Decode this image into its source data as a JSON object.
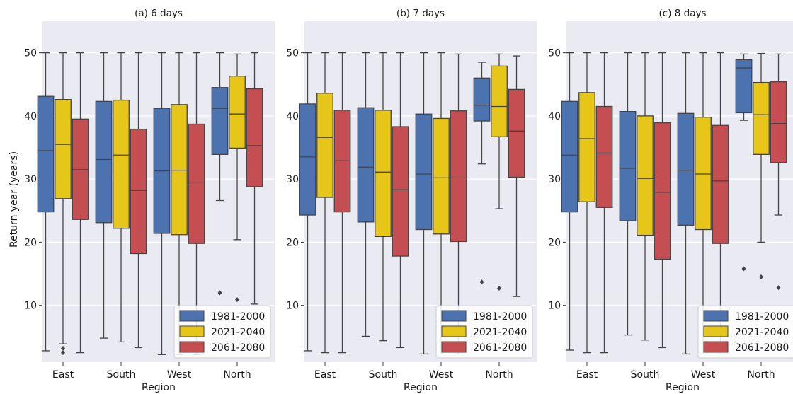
{
  "ylabel": "Return year (years)",
  "xlabel": "Region",
  "legend_entries": [
    "1981-2000",
    "2021-2040",
    "2061-2080"
  ],
  "colors": {
    "1981-2000": "#4c72b0",
    "2021-2040": "#e6c619",
    "2061-2080": "#c44e52",
    "background": "#eaeaf2",
    "whisker": "#444444"
  },
  "chart_data": [
    {
      "type": "box",
      "title": "(a) 6 days",
      "categories": [
        "East",
        "South",
        "West",
        "North"
      ],
      "ylim": [
        1,
        55
      ],
      "yticks": [
        10,
        20,
        30,
        40,
        50
      ],
      "grid": true,
      "legend_position": "lower-right",
      "series": [
        {
          "name": "1981-2000",
          "boxes": [
            {
              "min": 2.8,
              "q1": 24.8,
              "median": 34.5,
              "q3": 43.1,
              "max": 50,
              "outliers": []
            },
            {
              "min": 4.8,
              "q1": 23.1,
              "median": 33.1,
              "q3": 42.3,
              "max": 50,
              "outliers": []
            },
            {
              "min": 2.2,
              "q1": 21.4,
              "median": 31.3,
              "q3": 41.2,
              "max": 50,
              "outliers": []
            },
            {
              "min": 26.6,
              "q1": 33.9,
              "median": 41.2,
              "q3": 44.5,
              "max": 50,
              "outliers": [
                12.0
              ]
            }
          ]
        },
        {
          "name": "2021-2040",
          "boxes": [
            {
              "min": 3.9,
              "q1": 26.9,
              "median": 35.5,
              "q3": 42.6,
              "max": 50,
              "outliers": [
                3.2,
                2.5
              ]
            },
            {
              "min": 4.2,
              "q1": 22.2,
              "median": 33.8,
              "q3": 42.5,
              "max": 50,
              "outliers": []
            },
            {
              "min": 2.2,
              "q1": 21.2,
              "median": 31.4,
              "q3": 41.8,
              "max": 50,
              "outliers": []
            },
            {
              "min": 20.4,
              "q1": 34.9,
              "median": 40.3,
              "q3": 46.3,
              "max": 49.8,
              "outliers": [
                10.9
              ]
            }
          ]
        },
        {
          "name": "2061-2080",
          "boxes": [
            {
              "min": 2.5,
              "q1": 23.6,
              "median": 31.5,
              "q3": 39.5,
              "max": 50,
              "outliers": []
            },
            {
              "min": 3.3,
              "q1": 18.2,
              "median": 28.2,
              "q3": 37.9,
              "max": 50,
              "outliers": []
            },
            {
              "min": 2.2,
              "q1": 19.8,
              "median": 29.5,
              "q3": 38.7,
              "max": 50,
              "outliers": []
            },
            {
              "min": 10.2,
              "q1": 28.8,
              "median": 35.3,
              "q3": 44.3,
              "max": 50,
              "outliers": []
            }
          ]
        }
      ]
    },
    {
      "type": "box",
      "title": "(b) 7 days",
      "categories": [
        "East",
        "South",
        "West",
        "North"
      ],
      "ylim": [
        1,
        55
      ],
      "yticks": [
        10,
        20,
        30,
        40,
        50
      ],
      "grid": true,
      "legend_position": "lower-right",
      "series": [
        {
          "name": "1981-2000",
          "boxes": [
            {
              "min": 2.8,
              "q1": 24.3,
              "median": 33.5,
              "q3": 41.9,
              "max": 50,
              "outliers": []
            },
            {
              "min": 5.1,
              "q1": 23.2,
              "median": 31.9,
              "q3": 41.3,
              "max": 50,
              "outliers": []
            },
            {
              "min": 2.3,
              "q1": 22.0,
              "median": 30.8,
              "q3": 40.3,
              "max": 50,
              "outliers": []
            },
            {
              "min": 32.4,
              "q1": 39.2,
              "median": 41.7,
              "q3": 46.0,
              "max": 48.5,
              "outliers": [
                13.7
              ]
            }
          ]
        },
        {
          "name": "2021-2040",
          "boxes": [
            {
              "min": 2.5,
              "q1": 27.1,
              "median": 36.6,
              "q3": 43.6,
              "max": 50,
              "outliers": []
            },
            {
              "min": 4.4,
              "q1": 20.9,
              "median": 31.1,
              "q3": 40.9,
              "max": 50,
              "outliers": []
            },
            {
              "min": 2.3,
              "q1": 21.3,
              "median": 30.2,
              "q3": 39.6,
              "max": 50,
              "outliers": []
            },
            {
              "min": 25.3,
              "q1": 36.7,
              "median": 41.5,
              "q3": 47.9,
              "max": 49.8,
              "outliers": [
                12.7
              ]
            }
          ]
        },
        {
          "name": "2061-2080",
          "boxes": [
            {
              "min": 2.5,
              "q1": 24.8,
              "median": 32.9,
              "q3": 40.9,
              "max": 50,
              "outliers": []
            },
            {
              "min": 3.3,
              "q1": 17.8,
              "median": 28.3,
              "q3": 38.3,
              "max": 50,
              "outliers": []
            },
            {
              "min": 2.3,
              "q1": 20.1,
              "median": 30.2,
              "q3": 40.8,
              "max": 49.8,
              "outliers": []
            },
            {
              "min": 11.4,
              "q1": 30.3,
              "median": 37.6,
              "q3": 44.2,
              "max": 49.5,
              "outliers": []
            }
          ]
        }
      ]
    },
    {
      "type": "box",
      "title": "(c) 8 days",
      "categories": [
        "East",
        "South",
        "West",
        "North"
      ],
      "ylim": [
        1,
        55
      ],
      "yticks": [
        10,
        20,
        30,
        40,
        50
      ],
      "grid": true,
      "legend_position": "lower-right",
      "series": [
        {
          "name": "1981-2000",
          "boxes": [
            {
              "min": 2.9,
              "q1": 24.8,
              "median": 33.8,
              "q3": 42.3,
              "max": 50,
              "outliers": []
            },
            {
              "min": 5.3,
              "q1": 23.4,
              "median": 31.7,
              "q3": 40.7,
              "max": 50,
              "outliers": []
            },
            {
              "min": 2.3,
              "q1": 22.7,
              "median": 31.4,
              "q3": 40.4,
              "max": 50,
              "outliers": []
            },
            {
              "min": 39.3,
              "q1": 40.5,
              "median": 47.6,
              "q3": 48.9,
              "max": 49.8,
              "outliers": [
                15.8
              ]
            }
          ]
        },
        {
          "name": "2021-2040",
          "boxes": [
            {
              "min": 2.5,
              "q1": 26.4,
              "median": 36.4,
              "q3": 43.7,
              "max": 50,
              "outliers": []
            },
            {
              "min": 4.5,
              "q1": 21.1,
              "median": 30.1,
              "q3": 40.0,
              "max": 50,
              "outliers": []
            },
            {
              "min": 2.3,
              "q1": 22.0,
              "median": 30.8,
              "q3": 39.8,
              "max": 50,
              "outliers": []
            },
            {
              "min": 20.0,
              "q1": 33.9,
              "median": 40.2,
              "q3": 45.3,
              "max": 49.9,
              "outliers": [
                14.5
              ]
            }
          ]
        },
        {
          "name": "2061-2080",
          "boxes": [
            {
              "min": 2.5,
              "q1": 25.5,
              "median": 34.1,
              "q3": 41.5,
              "max": 50,
              "outliers": []
            },
            {
              "min": 3.3,
              "q1": 17.3,
              "median": 27.9,
              "q3": 38.9,
              "max": 50,
              "outliers": []
            },
            {
              "min": 2.3,
              "q1": 19.8,
              "median": 29.7,
              "q3": 38.5,
              "max": 50,
              "outliers": []
            },
            {
              "min": 24.3,
              "q1": 32.6,
              "median": 38.8,
              "q3": 45.4,
              "max": 49.8,
              "outliers": [
                12.8
              ]
            }
          ]
        }
      ]
    }
  ]
}
